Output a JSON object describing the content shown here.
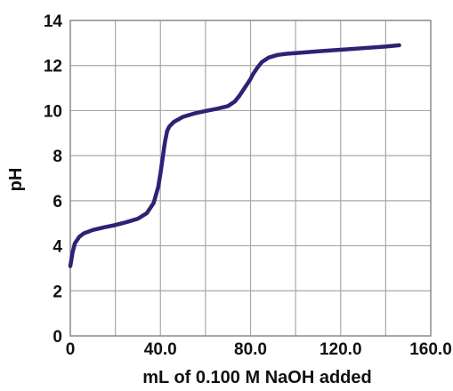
{
  "chart_data": {
    "type": "line",
    "title": "",
    "xlabel": "mL of 0.100 M NaOH added",
    "ylabel": "pH",
    "xlim": [
      0,
      160
    ],
    "ylim": [
      0,
      14
    ],
    "x_ticks": [
      0,
      40,
      80,
      120,
      160
    ],
    "x_tick_labels": [
      "0",
      "40.0",
      "80.0",
      "120.0",
      "160.0"
    ],
    "y_ticks": [
      0,
      2,
      4,
      6,
      8,
      10,
      12,
      14
    ],
    "y_tick_labels": [
      "0",
      "2",
      "4",
      "6",
      "8",
      "10",
      "12",
      "14"
    ],
    "grid": true,
    "grid_x_step": 20,
    "grid_y_step": 2,
    "series": [
      {
        "color": "#2e2275",
        "x": [
          0,
          1,
          2,
          4,
          6,
          10,
          15,
          20,
          25,
          30,
          34,
          37,
          39,
          40,
          41,
          42,
          43,
          44,
          46,
          50,
          55,
          60,
          65,
          70,
          73,
          75,
          77,
          79,
          80,
          81,
          83,
          85,
          88,
          92,
          96,
          100,
          110,
          120,
          130,
          140,
          146
        ],
        "y": [
          3.1,
          3.7,
          4.1,
          4.4,
          4.55,
          4.7,
          4.82,
          4.92,
          5.05,
          5.2,
          5.45,
          5.9,
          6.6,
          7.2,
          7.9,
          8.6,
          9.1,
          9.3,
          9.5,
          9.72,
          9.87,
          9.98,
          10.08,
          10.2,
          10.4,
          10.65,
          10.95,
          11.25,
          11.4,
          11.6,
          11.9,
          12.15,
          12.35,
          12.47,
          12.52,
          12.55,
          12.63,
          12.7,
          12.77,
          12.84,
          12.9
        ]
      }
    ]
  }
}
